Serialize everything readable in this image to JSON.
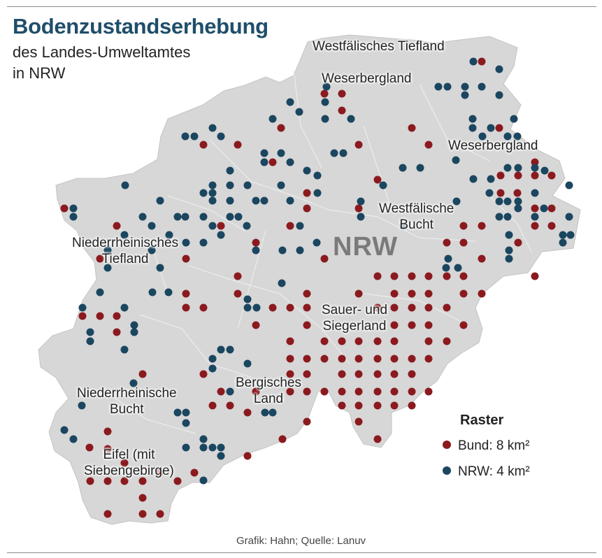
{
  "title": "Bodenzustandserhebung",
  "subtitle_line1": "des Landes-Umweltamtes",
  "subtitle_line2": "in NRW",
  "state_label": "NRW",
  "regions": {
    "westfaelisches_tiefland": "Westfälisches Tiefland",
    "weserbergland_north": "Weserbergland",
    "weserbergland_east": "Weserbergland",
    "westfaelische_bucht_1": "Westfälische",
    "westfaelische_bucht_2": "Bucht",
    "niederrheinisches_tiefland_1": "Niederrheinisches",
    "niederrheinisches_tiefland_2": "Tiefland",
    "sauer_siegerland_1": "Sauer- und",
    "sauer_siegerland_2": "Siegerland",
    "niederrheinische_bucht_1": "Niederrheinische",
    "niederrheinische_bucht_2": "Bucht",
    "bergisches_land_1": "Bergisches",
    "bergisches_land_2": "Land",
    "eifel_1": "Eifel (mit",
    "eifel_2": "Siebengebirge)"
  },
  "legend": {
    "title": "Raster",
    "bund_label": "Bund: 8 km²",
    "nrw_label": "NRW: 4 km²"
  },
  "colors": {
    "bund": "#8b1a1f",
    "nrw": "#1b4660",
    "land": "#d7d7d7",
    "title": "#1f4e6a"
  },
  "source": "Grafik: Hahn; Quelle: Lanuv"
}
